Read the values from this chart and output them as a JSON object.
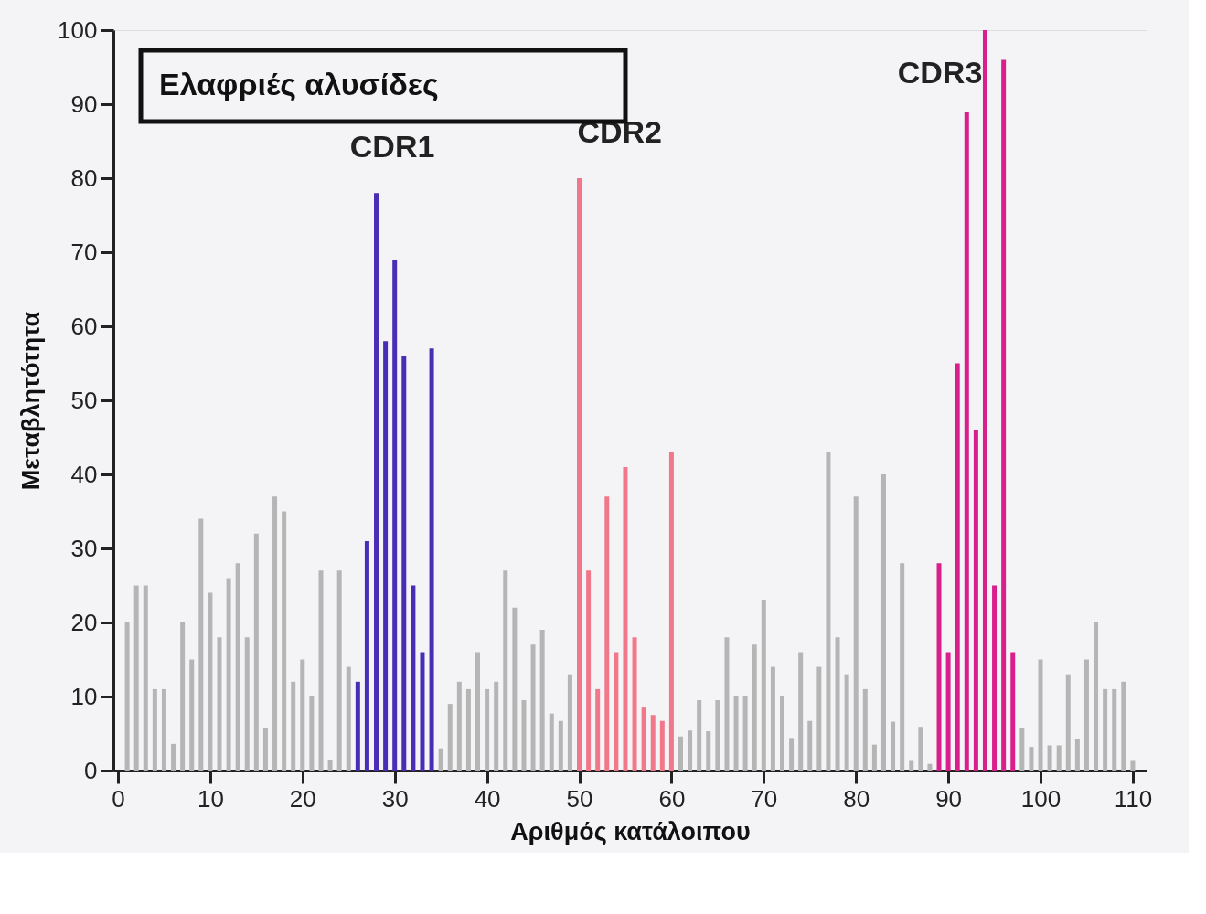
{
  "chart_data": {
    "type": "bar",
    "title": "Ελαφριές αλυσίδες",
    "xlabel": "Αριθμός κατάλοιπου",
    "ylabel": "Μεταβλητότητα",
    "x": [
      1,
      2,
      3,
      4,
      5,
      6,
      7,
      8,
      9,
      10,
      11,
      12,
      13,
      14,
      15,
      16,
      17,
      18,
      19,
      20,
      21,
      22,
      23,
      24,
      25,
      26,
      27,
      28,
      29,
      30,
      31,
      32,
      33,
      34,
      35,
      36,
      37,
      38,
      39,
      40,
      41,
      42,
      43,
      44,
      45,
      46,
      47,
      48,
      49,
      50,
      51,
      52,
      53,
      54,
      55,
      56,
      57,
      58,
      59,
      60,
      61,
      62,
      63,
      64,
      65,
      66,
      67,
      68,
      69,
      70,
      71,
      72,
      73,
      74,
      75,
      76,
      77,
      78,
      79,
      80,
      81,
      82,
      83,
      84,
      85,
      86,
      87,
      88,
      89,
      90,
      91,
      92,
      93,
      94,
      95,
      96,
      97,
      98,
      99,
      100,
      101,
      102,
      103,
      104,
      105,
      106,
      107,
      108,
      109,
      110
    ],
    "values": [
      20,
      25,
      25,
      11,
      11,
      3.6,
      20,
      15,
      34,
      24,
      18,
      26,
      28,
      18,
      32,
      5.7,
      37,
      35,
      12,
      15,
      10,
      27,
      1.4,
      27,
      14,
      12,
      31,
      78,
      58,
      69,
      56,
      25,
      16,
      57,
      3,
      9,
      12,
      11,
      16,
      11,
      12,
      27,
      22,
      9.5,
      17,
      19,
      7.7,
      6.7,
      13,
      80,
      27,
      11,
      37,
      16,
      41,
      18,
      8.5,
      7.5,
      6.7,
      43,
      4.6,
      5.4,
      9.5,
      5.3,
      9.5,
      18,
      10,
      10,
      17,
      23,
      14,
      10,
      4.4,
      16,
      6.7,
      14,
      43,
      18,
      13,
      37,
      11,
      3.5,
      40,
      6.6,
      28,
      1.3,
      5.9,
      0.9,
      28,
      16,
      55,
      89,
      46,
      100,
      25,
      96,
      16,
      5.7,
      3.2,
      15,
      3.4,
      3.4,
      13,
      4.3,
      15,
      20,
      11,
      11,
      12,
      1.3
    ],
    "colors": [
      "#b5b5b5",
      "#b5b5b5",
      "#b5b5b5",
      "#b5b5b5",
      "#b5b5b5",
      "#b5b5b5",
      "#b5b5b5",
      "#b5b5b5",
      "#b5b5b5",
      "#b5b5b5",
      "#b5b5b5",
      "#b5b5b5",
      "#b5b5b5",
      "#b5b5b5",
      "#b5b5b5",
      "#b5b5b5",
      "#b5b5b5",
      "#b5b5b5",
      "#b5b5b5",
      "#b5b5b5",
      "#b5b5b5",
      "#b5b5b5",
      "#b5b5b5",
      "#b5b5b5",
      "#b5b5b5",
      "#4a2db5",
      "#4a2db5",
      "#4a2db5",
      "#4a2db5",
      "#4a2db5",
      "#4a2db5",
      "#4a2db5",
      "#4a2db5",
      "#4a2db5",
      "#b5b5b5",
      "#b5b5b5",
      "#b5b5b5",
      "#b5b5b5",
      "#b5b5b5",
      "#b5b5b5",
      "#b5b5b5",
      "#b5b5b5",
      "#b5b5b5",
      "#b5b5b5",
      "#b5b5b5",
      "#b5b5b5",
      "#b5b5b5",
      "#b5b5b5",
      "#b5b5b5",
      "#f0788a",
      "#f0788a",
      "#f0788a",
      "#f0788a",
      "#f0788a",
      "#f0788a",
      "#f0788a",
      "#f0788a",
      "#f0788a",
      "#f0788a",
      "#f0788a",
      "#b5b5b5",
      "#b5b5b5",
      "#b5b5b5",
      "#b5b5b5",
      "#b5b5b5",
      "#b5b5b5",
      "#b5b5b5",
      "#b5b5b5",
      "#b5b5b5",
      "#b5b5b5",
      "#b5b5b5",
      "#b5b5b5",
      "#b5b5b5",
      "#b5b5b5",
      "#b5b5b5",
      "#b5b5b5",
      "#b5b5b5",
      "#b5b5b5",
      "#b5b5b5",
      "#b5b5b5",
      "#b5b5b5",
      "#b5b5b5",
      "#b5b5b5",
      "#b5b5b5",
      "#b5b5b5",
      "#b5b5b5",
      "#b5b5b5",
      "#b5b5b5",
      "#d81f8c",
      "#d81f8c",
      "#d81f8c",
      "#d81f8c",
      "#d81f8c",
      "#d81f8c",
      "#d81f8c",
      "#d81f8c",
      "#d81f8c",
      "#b5b5b5",
      "#b5b5b5",
      "#b5b5b5",
      "#b5b5b5",
      "#b5b5b5",
      "#b5b5b5",
      "#b5b5b5",
      "#b5b5b5",
      "#b5b5b5",
      "#b5b5b5",
      "#b5b5b5",
      "#b5b5b5",
      "#b5b5b5"
    ],
    "annotations": [
      "CDR1",
      "CDR2",
      "CDR3"
    ],
    "xlim": [
      0,
      111
    ],
    "xticks": [
      0,
      10,
      20,
      30,
      40,
      50,
      60,
      70,
      80,
      90,
      100,
      110
    ],
    "ylim": [
      0,
      100
    ],
    "yticks": [
      0,
      10,
      20,
      30,
      40,
      50,
      60,
      70,
      80,
      90,
      100
    ],
    "grid": false
  }
}
